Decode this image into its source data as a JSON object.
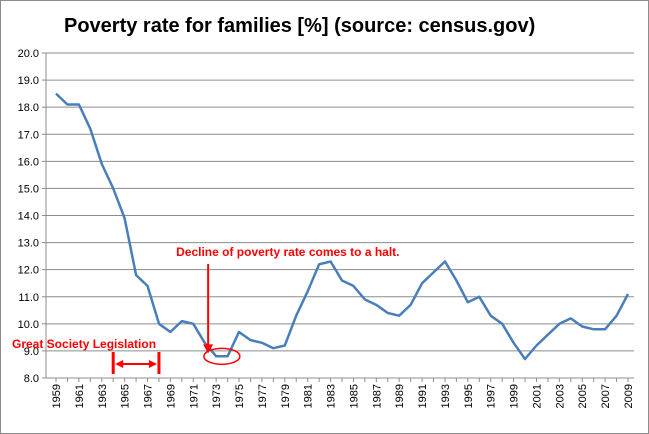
{
  "chart_data": {
    "type": "line",
    "title": "Poverty rate for families [%] (source: census.gov)",
    "xlabel": "",
    "ylabel": "",
    "ylim": [
      8.0,
      20.0
    ],
    "ytick_labels": [
      "8.0",
      "9.0",
      "10.0",
      "11.0",
      "12.0",
      "13.0",
      "14.0",
      "15.0",
      "16.0",
      "17.0",
      "18.0",
      "19.0",
      "20.0"
    ],
    "xtick_labels": [
      "1959",
      "1961",
      "1963",
      "1965",
      "1967",
      "1969",
      "1971",
      "1973",
      "1975",
      "1977",
      "1979",
      "1981",
      "1983",
      "1985",
      "1987",
      "1989",
      "1991",
      "1993",
      "1995",
      "1997",
      "1999",
      "2001",
      "2003",
      "2005",
      "2007",
      "2009"
    ],
    "grid": true,
    "series": [
      {
        "name": "Poverty rate for families",
        "color": "#4a7ebb",
        "x": [
          1959,
          1960,
          1961,
          1962,
          1963,
          1964,
          1965,
          1966,
          1967,
          1968,
          1969,
          1970,
          1971,
          1972,
          1973,
          1974,
          1975,
          1976,
          1977,
          1978,
          1979,
          1980,
          1981,
          1982,
          1983,
          1984,
          1985,
          1986,
          1987,
          1988,
          1989,
          1990,
          1991,
          1992,
          1993,
          1994,
          1995,
          1996,
          1997,
          1998,
          1999,
          2000,
          2001,
          2002,
          2003,
          2004,
          2005,
          2006,
          2007,
          2008,
          2009
        ],
        "values": [
          18.5,
          18.1,
          18.1,
          17.2,
          15.9,
          15.0,
          13.9,
          11.8,
          11.4,
          10.0,
          9.7,
          10.1,
          10.0,
          9.3,
          8.8,
          8.8,
          9.7,
          9.4,
          9.3,
          9.1,
          9.2,
          10.3,
          11.2,
          12.2,
          12.3,
          11.6,
          11.4,
          10.9,
          10.7,
          10.4,
          10.3,
          10.7,
          11.5,
          11.9,
          12.3,
          11.6,
          10.8,
          11.0,
          10.3,
          10.0,
          9.3,
          8.7,
          9.2,
          9.6,
          10.0,
          10.2,
          9.9,
          9.8,
          9.8,
          10.3,
          11.1
        ]
      }
    ],
    "annotations": [
      {
        "text": "Decline of poverty rate comes to a halt.",
        "color": "#ff0000",
        "target_year": 1973.5,
        "target_value": 8.8
      },
      {
        "text": "Great Society Legislation",
        "color": "#ff0000",
        "start_year": 1964,
        "end_year": 1968
      }
    ]
  }
}
